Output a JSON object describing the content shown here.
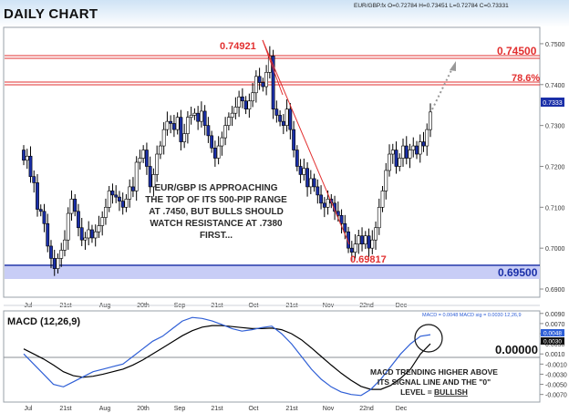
{
  "header": {
    "title": "DAILY CHART",
    "ohlc": "EUR/GBP.fx O=0.72784 H=0.73451 L=0.72784 C=0.73331"
  },
  "price_chart": {
    "last_price": "0.7333",
    "annotation": "EUR/GBP IS APPROACHING THE TOP OF ITS 500-PIP RANGE AT .7450, BUT BULLS SHOULD WATCH RESISTANCE AT .7380 FIRST...",
    "labels": {
      "high": "0.74921",
      "low": "0.69817",
      "fib": "78.6%",
      "resistance": "0.74500",
      "support": "0.69500"
    }
  },
  "macd_panel": {
    "title": "MACD (12,26,9)",
    "readout": "MACD = 0.0048  MACD sig = 0.0030   12,26,9",
    "zero_label": "0.00000",
    "annotation_line1": "MACD TRENDING HIGHER ABOVE",
    "annotation_line2": "ITS SIGNAL LINE AND THE \"0\"",
    "annotation_line3_prefix": "LEVEL = ",
    "annotation_line3_emph": "BULLISH",
    "tag_macd": "0.0048",
    "tag_sig": "0.0030"
  },
  "colors": {
    "bull": "#ffffff",
    "bear": "#1a2fa8",
    "resistance_line": "#e23030",
    "support_band": "#c8cdf6",
    "macd_line": "#2f5fd6",
    "signal_line": "#000000"
  },
  "chart_data": [
    {
      "type": "candlestick",
      "x_tick_labels": [
        "Jul",
        "21st",
        "Aug",
        "20th",
        "Sep",
        "21st",
        "Oct",
        "21st",
        "Nov",
        "22nd",
        "Dec"
      ],
      "y_ticks": [
        0.75,
        0.74,
        0.73,
        0.72,
        0.71,
        0.7,
        0.69
      ],
      "y_tick_labels": [
        "0.7500",
        "0.7400",
        "0.7300",
        "0.7200",
        "0.7100",
        "0.7000",
        "0.6900"
      ],
      "ylim": [
        0.688,
        0.754
      ],
      "closes": [
        0.7215,
        0.7225,
        0.7175,
        0.716,
        0.7095,
        0.709,
        0.706,
        0.7005,
        0.6975,
        0.695,
        0.6975,
        0.6995,
        0.702,
        0.7085,
        0.712,
        0.709,
        0.705,
        0.702,
        0.7025,
        0.7045,
        0.7025,
        0.704,
        0.7055,
        0.7075,
        0.71,
        0.714,
        0.713,
        0.7125,
        0.7115,
        0.71,
        0.712,
        0.715,
        0.714,
        0.721,
        0.722,
        0.724,
        0.72,
        0.715,
        0.718,
        0.723,
        0.725,
        0.729,
        0.731,
        0.7305,
        0.729,
        0.732,
        0.726,
        0.728,
        0.732,
        0.7325,
        0.733,
        0.731,
        0.7335,
        0.73,
        0.7275,
        0.7245,
        0.722,
        0.725,
        0.727,
        0.73,
        0.732,
        0.733,
        0.7345,
        0.737,
        0.736,
        0.734,
        0.736,
        0.738,
        0.742,
        0.7405,
        0.7395,
        0.743,
        0.747,
        0.734,
        0.7325,
        0.731,
        0.73,
        0.734,
        0.729,
        0.724,
        0.72,
        0.718,
        0.7195,
        0.715,
        0.717,
        0.715,
        0.713,
        0.711,
        0.71,
        0.712,
        0.711,
        0.709,
        0.708,
        0.706,
        0.704,
        0.7,
        0.699,
        0.701,
        0.703,
        0.701,
        0.703,
        0.7,
        0.702,
        0.705,
        0.71,
        0.714,
        0.719,
        0.723,
        0.724,
        0.72,
        0.722,
        0.725,
        0.722,
        0.724,
        0.725,
        0.723,
        0.726,
        0.725,
        0.729,
        0.7333
      ],
      "high_label": 0.74921,
      "low_label": 0.69817,
      "resistance": 0.745,
      "fib_78_6": 0.738,
      "support": 0.695,
      "grid": false
    },
    {
      "type": "line",
      "series": [
        {
          "name": "MACD",
          "values": [
            0.001,
            -0.001,
            -0.003,
            -0.005,
            -0.0055,
            -0.0045,
            -0.0035,
            -0.0025,
            -0.002,
            -0.0015,
            -0.001,
            0.0005,
            0.002,
            0.0035,
            0.0045,
            0.006,
            0.0075,
            0.0082,
            0.008,
            0.0075,
            0.0068,
            0.006,
            0.0055,
            0.0058,
            0.0062,
            0.0065,
            0.005,
            0.003,
            0.0005,
            -0.002,
            -0.004,
            -0.0055,
            -0.0065,
            -0.007,
            -0.0072,
            -0.006,
            -0.004,
            -0.0015,
            0.001,
            0.003,
            0.0045,
            0.0048
          ]
        },
        {
          "name": "MACD sig",
          "values": [
            0.002,
            0.001,
            0.0,
            -0.0012,
            -0.0025,
            -0.0033,
            -0.0036,
            -0.0034,
            -0.003,
            -0.0025,
            -0.002,
            -0.0012,
            -0.0002,
            0.001,
            0.0022,
            0.0034,
            0.0046,
            0.0056,
            0.0063,
            0.0066,
            0.0066,
            0.0064,
            0.0062,
            0.006,
            0.006,
            0.0061,
            0.0058,
            0.005,
            0.0038,
            0.0022,
            0.0005,
            -0.0012,
            -0.0028,
            -0.0042,
            -0.0054,
            -0.006,
            -0.006,
            -0.0052,
            -0.0038,
            -0.002,
            0.001,
            0.003
          ]
        }
      ],
      "y_ticks": [
        0.009,
        0.007,
        0.005,
        0.003,
        0.001,
        -0.001,
        -0.003,
        -0.005,
        -0.007
      ],
      "y_tick_labels": [
        "0.0090",
        "0.0070",
        "0.0050",
        "0.0030",
        "0.0010",
        "-0.0010",
        "-0.0030",
        "-0.0050",
        "-0.0070"
      ],
      "ylim": [
        -0.0085,
        0.0095
      ],
      "x_tick_labels": [
        "Jul",
        "21st",
        "Aug",
        "20th",
        "Sep",
        "21st",
        "Oct",
        "21st",
        "Nov",
        "22nd",
        "Dec"
      ]
    }
  ]
}
